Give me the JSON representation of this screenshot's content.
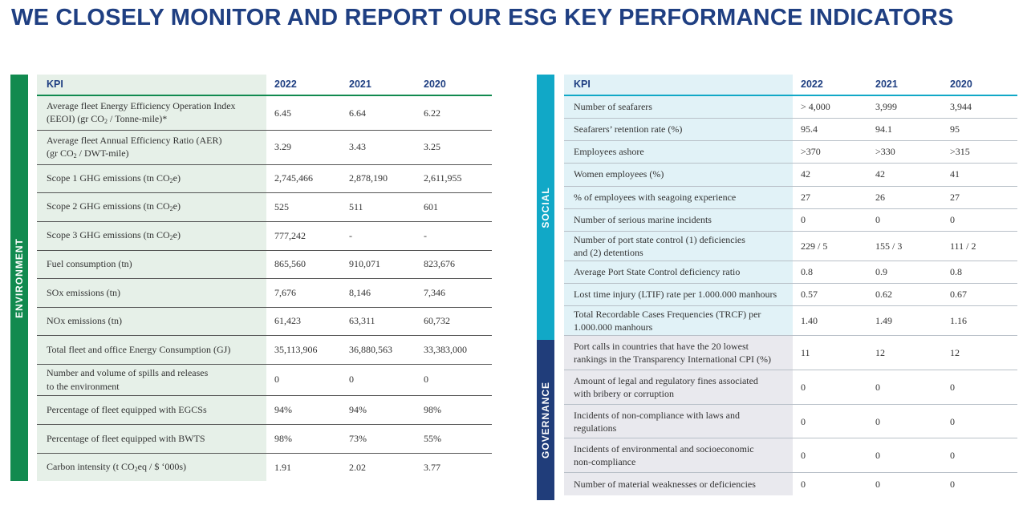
{
  "title": "WE CLOSELY MONITOR AND REPORT OUR ESG KEY PERFORMANCE INDICATORS",
  "colors": {
    "title": "#1f3f82",
    "environment_band": "#118a4f",
    "social_band": "#11a8c7",
    "governance_band": "#203d7a",
    "environment_cell": "#e6f0e8",
    "social_cell": "#e1f2f7",
    "governance_cell": "#e9e9ee"
  },
  "environment": {
    "label": "ENVIRONMENT",
    "headers": [
      "KPI",
      "2022",
      "2021",
      "2020"
    ],
    "rows": [
      {
        "k1": "Average fleet Energy Efficiency Operation Index",
        "k2": "(EEOI) (gr CO",
        "sub": "2",
        "k3": " / Tonne-mile)*",
        "v2022": "6.45",
        "v2021": "6.64",
        "v2020": "6.22"
      },
      {
        "k1": "Average fleet Annual Efficiency Ratio (AER)",
        "k2": "(gr CO",
        "sub": "2",
        "k3": " / DWT-mile)",
        "v2022": "3.29",
        "v2021": "3.43",
        "v2020": "3.25"
      },
      {
        "k1": "",
        "k2": "Scope 1 GHG emissions (tn CO",
        "sub": "2",
        "k3": "e)",
        "v2022": "2,745,466",
        "v2021": "2,878,190",
        "v2020": "2,611,955"
      },
      {
        "k1": "",
        "k2": "Scope 2 GHG emissions (tn CO",
        "sub": "2",
        "k3": "e)",
        "v2022": "525",
        "v2021": "511",
        "v2020": "601"
      },
      {
        "k1": "",
        "k2": "Scope 3 GHG emissions (tn CO",
        "sub": "2",
        "k3": "e)",
        "v2022": "777,242",
        "v2021": "-",
        "v2020": "-"
      },
      {
        "k1": "Fuel consumption (tn)",
        "k2": "",
        "sub": "",
        "k3": "",
        "v2022": "865,560",
        "v2021": "910,071",
        "v2020": "823,676"
      },
      {
        "k1": "SOx emissions (tn)",
        "k2": "",
        "sub": "",
        "k3": "",
        "v2022": "7,676",
        "v2021": "8,146",
        "v2020": "7,346"
      },
      {
        "k1": "NOx emissions (tn)",
        "k2": "",
        "sub": "",
        "k3": "",
        "v2022": "61,423",
        "v2021": "63,311",
        "v2020": "60,732"
      },
      {
        "k1": "Total fleet and office Energy Consumption (GJ)",
        "k2": "",
        "sub": "",
        "k3": "",
        "v2022": "35,113,906",
        "v2021": "36,880,563",
        "v2020": "33,383,000"
      },
      {
        "k1": "Number and volume of spills and releases",
        "k2": "to the environment",
        "sub": "",
        "k3": "",
        "v2022": "0",
        "v2021": "0",
        "v2020": "0"
      },
      {
        "k1": "Percentage of fleet equipped with EGCSs",
        "k2": "",
        "sub": "",
        "k3": "",
        "v2022": "94%",
        "v2021": "94%",
        "v2020": "98%"
      },
      {
        "k1": "Percentage of fleet equipped with BWTS",
        "k2": "",
        "sub": "",
        "k3": "",
        "v2022": "98%",
        "v2021": "73%",
        "v2020": "55%"
      },
      {
        "k1": "",
        "k2": "Carbon intensity (t CO",
        "sub": "2",
        "k3": "eq / $ ‘000s)",
        "v2022": "1.91",
        "v2021": "2.02",
        "v2020": "3.77"
      }
    ]
  },
  "social": {
    "label": "SOCIAL",
    "headers": [
      "KPI",
      "2022",
      "2021",
      "2020"
    ],
    "rows": [
      {
        "k1": "Number of seafarers",
        "k2": "",
        "v2022": "> 4,000",
        "v2021": "3,999",
        "v2020": "3,944"
      },
      {
        "k1": "Seafarers’ retention rate (%)",
        "k2": "",
        "v2022": "95.4",
        "v2021": "94.1",
        "v2020": "95"
      },
      {
        "k1": "Employees ashore",
        "k2": "",
        "v2022": ">370",
        "v2021": ">330",
        "v2020": ">315"
      },
      {
        "k1": "Women employees (%)",
        "k2": "",
        "v2022": "42",
        "v2021": "42",
        "v2020": "41"
      },
      {
        "k1": "% of employees with seagoing experience",
        "k2": "",
        "v2022": "27",
        "v2021": "26",
        "v2020": "27"
      },
      {
        "k1": "Number of serious marine incidents",
        "k2": "",
        "v2022": "0",
        "v2021": "0",
        "v2020": "0"
      },
      {
        "k1": "Number of port state control (1) deficiencies",
        "k2": "and (2) detentions",
        "v2022": "229 / 5",
        "v2021": "155 / 3",
        "v2020": "111 / 2"
      },
      {
        "k1": "Average Port State Control deficiency ratio",
        "k2": "",
        "v2022": "0.8",
        "v2021": "0.9",
        "v2020": "0.8"
      },
      {
        "k1": "Lost time injury (LTIF) rate per 1.000.000 manhours",
        "k2": "",
        "v2022": "0.57",
        "v2021": "0.62",
        "v2020": "0.67"
      },
      {
        "k1": "Total Recordable Cases Frequencies (TRCF) per",
        "k2": "1.000.000 manhours",
        "v2022": "1.40",
        "v2021": "1.49",
        "v2020": "1.16"
      }
    ]
  },
  "governance": {
    "label": "GOVERNANCE",
    "rows": [
      {
        "k1": "Port calls in countries that have the 20 lowest",
        "k2": "rankings in the Transparency International CPI (%)",
        "v2022": "11",
        "v2021": "12",
        "v2020": "12"
      },
      {
        "k1": "Amount of legal and regulatory fines associated",
        "k2": "with bribery or corruption",
        "v2022": "0",
        "v2021": "0",
        "v2020": "0"
      },
      {
        "k1": "Incidents of non-compliance with laws and",
        "k2": "regulations",
        "v2022": "0",
        "v2021": "0",
        "v2020": "0"
      },
      {
        "k1": "Incidents of environmental and socioeconomic",
        "k2": "non-compliance",
        "v2022": "0",
        "v2021": "0",
        "v2020": "0"
      },
      {
        "k1": "Number of material weaknesses or deficiencies",
        "k2": "",
        "v2022": "0",
        "v2021": "0",
        "v2020": "0"
      }
    ]
  }
}
